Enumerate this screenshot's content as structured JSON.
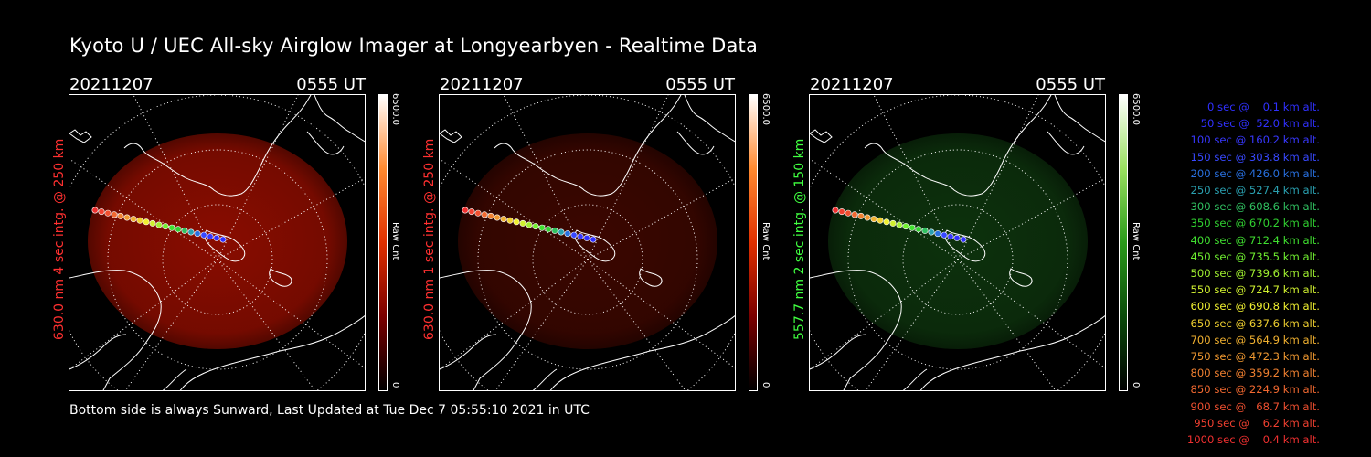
{
  "header": {
    "title": "Kyoto U / UEC All-sky Airglow Imager at Longyearbyen - Realtime Data"
  },
  "panels": [
    {
      "date": "20211207",
      "time": "0555 UT",
      "side_label": "630.0 nm 4 sec intg. @ 250 km",
      "label_color": "#ff3030",
      "colorbar_max": "6500.0",
      "colorbar_min": "0",
      "colorbar_unit": "Raw Cnt",
      "glow_color": "#b01000",
      "glow_opacity": 0.78,
      "colorbar_gradient": [
        "#000000",
        "#7a0000",
        "#e03000",
        "#ff8a30",
        "#ffffff"
      ]
    },
    {
      "date": "20211207",
      "time": "0555 UT",
      "side_label": "630.0 nm 1 sec intg. @ 250 km",
      "label_color": "#ff3030",
      "colorbar_max": "6500.0",
      "colorbar_min": "0",
      "colorbar_unit": "Raw Cnt",
      "glow_color": "#4a0800",
      "glow_opacity": 0.8,
      "colorbar_gradient": [
        "#000000",
        "#7a0000",
        "#e03000",
        "#ff8a30",
        "#ffffff"
      ]
    },
    {
      "date": "20211207",
      "time": "0555 UT",
      "side_label": "557.7 nm 2 sec intg. @ 150 km",
      "label_color": "#40ff40",
      "colorbar_max": "6500.0",
      "colorbar_min": "0",
      "colorbar_unit": "Raw Cnt",
      "glow_color": "#0f3a0f",
      "glow_opacity": 0.85,
      "colorbar_gradient": [
        "#000000",
        "#0a4a0a",
        "#2a9a1a",
        "#9ae060",
        "#ffffff"
      ]
    }
  ],
  "legend": [
    {
      "text": "   0 sec @    0.1 km alt.",
      "color": "#3030ff"
    },
    {
      "text": "  50 sec @  52.0 km alt.",
      "color": "#3030ff"
    },
    {
      "text": " 100 sec @ 160.2 km alt.",
      "color": "#3838ff"
    },
    {
      "text": " 150 sec @ 303.8 km alt.",
      "color": "#3848ff"
    },
    {
      "text": " 200 sec @ 426.0 km alt.",
      "color": "#2870e0"
    },
    {
      "text": " 250 sec @ 527.4 km alt.",
      "color": "#2aa0b0"
    },
    {
      "text": " 300 sec @ 608.6 km alt.",
      "color": "#30c060"
    },
    {
      "text": " 350 sec @ 670.2 km alt.",
      "color": "#30d030"
    },
    {
      "text": " 400 sec @ 712.4 km alt.",
      "color": "#40e030"
    },
    {
      "text": " 450 sec @ 735.5 km alt.",
      "color": "#70f030"
    },
    {
      "text": " 500 sec @ 739.6 km alt.",
      "color": "#a0f030"
    },
    {
      "text": " 550 sec @ 724.7 km alt.",
      "color": "#d0f030"
    },
    {
      "text": " 600 sec @ 690.8 km alt.",
      "color": "#f0f030"
    },
    {
      "text": " 650 sec @ 637.6 km alt.",
      "color": "#f0d030"
    },
    {
      "text": " 700 sec @ 564.9 km alt.",
      "color": "#f0b030"
    },
    {
      "text": " 750 sec @ 472.3 km alt.",
      "color": "#f09830"
    },
    {
      "text": " 800 sec @ 359.2 km alt.",
      "color": "#f08030"
    },
    {
      "text": " 850 sec @ 224.9 km alt.",
      "color": "#f06830"
    },
    {
      "text": " 900 sec @   68.7 km alt.",
      "color": "#f05030"
    },
    {
      "text": " 950 sec @    6.2 km alt.",
      "color": "#f04030"
    },
    {
      "text": "1000 sec @    0.4 km alt.",
      "color": "#f03030"
    }
  ],
  "footer": {
    "text": "Bottom side is always Sunward, Last Updated at Tue Dec  7 05:55:10 2021 in UTC"
  }
}
